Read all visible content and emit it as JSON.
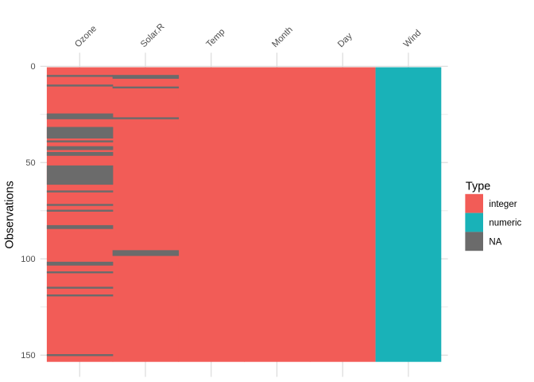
{
  "chart_data": {
    "type": "heatmap",
    "title": "",
    "xlabel": "",
    "ylabel": "Observations",
    "legend_title": "Type",
    "legend": [
      {
        "label": "integer",
        "color": "#F25C57"
      },
      {
        "label": "numeric",
        "color": "#19B2B8"
      },
      {
        "label": "NA",
        "color": "#6B6B6B"
      }
    ],
    "n_observations": 153,
    "y_axis_reversed": true,
    "y_ticks_major": [
      0,
      50,
      100,
      150
    ],
    "y_ticks_minor": [
      25,
      75,
      125
    ],
    "columns": [
      {
        "name": "Ozone",
        "type": "integer",
        "na_rows": [
          5,
          10,
          25,
          26,
          27,
          32,
          33,
          34,
          35,
          36,
          37,
          39,
          42,
          43,
          45,
          46,
          52,
          53,
          54,
          55,
          56,
          57,
          58,
          59,
          60,
          61,
          65,
          72,
          75,
          83,
          84,
          102,
          103,
          107,
          115,
          119,
          150
        ]
      },
      {
        "name": "Solar.R",
        "type": "integer",
        "na_rows": [
          5,
          6,
          11,
          27,
          96,
          97,
          98
        ]
      },
      {
        "name": "Temp",
        "type": "integer",
        "na_rows": []
      },
      {
        "name": "Month",
        "type": "integer",
        "na_rows": []
      },
      {
        "name": "Day",
        "type": "integer",
        "na_rows": []
      },
      {
        "name": "Wind",
        "type": "numeric",
        "na_rows": []
      }
    ],
    "grid": true,
    "legend_position": "right"
  },
  "colors": {
    "background": "#FFFFFF",
    "grid_major": "#DBDBDB",
    "grid_minor": "#EBEBEB",
    "axis_text": "#4D4D4D",
    "title_text": "#000000"
  }
}
